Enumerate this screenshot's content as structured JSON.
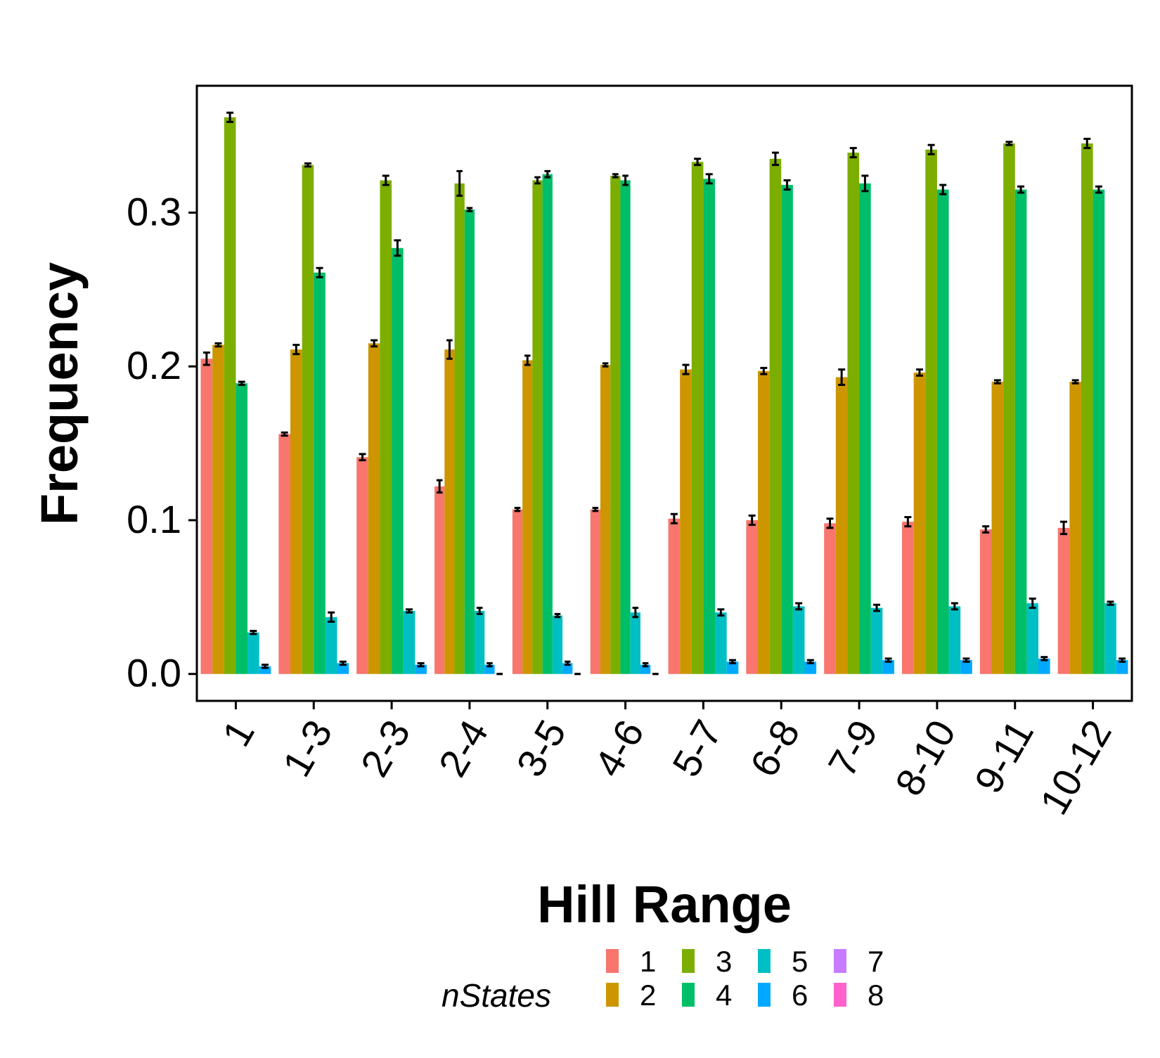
{
  "chart_data": {
    "type": "bar",
    "title": "",
    "xlabel": "Hill Range",
    "ylabel": "Frequency",
    "ylim": [
      -0.0175,
      0.3825
    ],
    "yticks": [
      "0.0",
      "0.1",
      "0.2",
      "0.3"
    ],
    "ytick_values": [
      0.0,
      0.1,
      0.2,
      0.3
    ],
    "grid": false,
    "legend_position": "bottom",
    "legend_title": "nStates",
    "categories": [
      "1",
      "1-3",
      "2-3",
      "2-4",
      "3-5",
      "4-6",
      "5-7",
      "6-8",
      "7-9",
      "8-10",
      "9-11",
      "10-12"
    ],
    "series": [
      {
        "name": "1",
        "color": "#F8766D",
        "values": [
          0.205,
          0.156,
          0.141,
          0.122,
          0.107,
          0.107,
          0.101,
          0.1,
          0.098,
          0.099,
          0.094,
          0.095
        ],
        "errors": [
          0.004,
          0.001,
          0.002,
          0.004,
          0.001,
          0.001,
          0.003,
          0.003,
          0.003,
          0.003,
          0.002,
          0.004
        ]
      },
      {
        "name": "2",
        "color": "#CD9600",
        "values": [
          0.214,
          0.211,
          0.215,
          0.211,
          0.204,
          0.201,
          0.198,
          0.197,
          0.193,
          0.196,
          0.19,
          0.19
        ],
        "errors": [
          0.001,
          0.003,
          0.002,
          0.006,
          0.003,
          0.001,
          0.003,
          0.002,
          0.005,
          0.002,
          0.001,
          0.001
        ]
      },
      {
        "name": "3",
        "color": "#7CAE00",
        "values": [
          0.362,
          0.331,
          0.321,
          0.319,
          0.321,
          0.324,
          0.333,
          0.335,
          0.339,
          0.341,
          0.345,
          0.345
        ],
        "errors": [
          0.003,
          0.001,
          0.003,
          0.008,
          0.002,
          0.001,
          0.002,
          0.004,
          0.003,
          0.003,
          0.001,
          0.003
        ]
      },
      {
        "name": "4",
        "color": "#00BE67",
        "values": [
          0.189,
          0.261,
          0.277,
          0.302,
          0.325,
          0.321,
          0.322,
          0.318,
          0.319,
          0.315,
          0.315,
          0.315
        ],
        "errors": [
          0.001,
          0.003,
          0.005,
          0.001,
          0.002,
          0.003,
          0.003,
          0.003,
          0.005,
          0.003,
          0.002,
          0.002
        ]
      },
      {
        "name": "5",
        "color": "#00BFC4",
        "values": [
          0.027,
          0.037,
          0.041,
          0.041,
          0.038,
          0.04,
          0.04,
          0.044,
          0.043,
          0.044,
          0.046,
          0.046
        ],
        "errors": [
          0.001,
          0.003,
          0.001,
          0.002,
          0.001,
          0.003,
          0.002,
          0.002,
          0.002,
          0.002,
          0.003,
          0.001
        ]
      },
      {
        "name": "6",
        "color": "#00A9FF",
        "values": [
          0.005,
          0.007,
          0.006,
          0.006,
          0.007,
          0.006,
          0.008,
          0.008,
          0.009,
          0.009,
          0.01,
          0.009
        ],
        "errors": [
          0.001,
          0.001,
          0.001,
          0.001,
          0.001,
          0.001,
          0.001,
          0.001,
          0.001,
          0.001,
          0.001,
          0.001
        ]
      },
      {
        "name": "7",
        "color": "#C77CFF",
        "values": [
          null,
          null,
          null,
          0.0,
          0.0,
          0.0,
          null,
          null,
          null,
          null,
          null,
          null
        ],
        "errors": [
          null,
          null,
          null,
          0.0,
          0.0,
          0.0,
          null,
          null,
          null,
          null,
          null,
          null
        ]
      },
      {
        "name": "8",
        "color": "#FF61CC",
        "values": [
          null,
          null,
          null,
          null,
          null,
          null,
          null,
          null,
          null,
          null,
          null,
          null
        ],
        "errors": [
          null,
          null,
          null,
          null,
          null,
          null,
          null,
          null,
          null,
          null,
          null,
          null
        ]
      }
    ]
  }
}
